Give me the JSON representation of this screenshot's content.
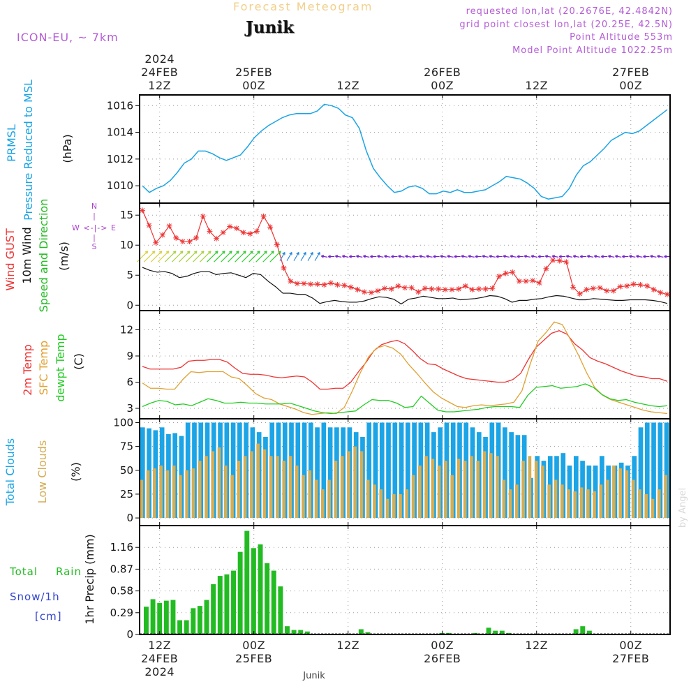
{
  "header": {
    "title": "Forecast Meteogram",
    "location": "Junik",
    "model": "ICON-EU, ~ 7km",
    "requested": "requested lon,lat (20.2676E, 42.4842N)",
    "gridpoint": "grid point closest lon,lat (20.25E, 42.5N)",
    "altitude": "Point Altitude 553m",
    "model_altitude": "Model Point Altitude 1022.25m",
    "credit": "by Angel",
    "footer_location": "Junik"
  },
  "time_axis": {
    "top_labels": [
      {
        "lines": [
          "2024",
          "24FEB",
          "12Z"
        ],
        "t": 12
      },
      {
        "lines": [
          "25FEB",
          "00Z"
        ],
        "t": 24
      },
      {
        "lines": [
          "12Z"
        ],
        "t": 36
      },
      {
        "lines": [
          "26FEB",
          "00Z"
        ],
        "t": 48
      },
      {
        "lines": [
          "12Z"
        ],
        "t": 60
      },
      {
        "lines": [
          "27FEB",
          "00Z"
        ],
        "t": 72
      }
    ],
    "bottom_labels": [
      {
        "lines": [
          "12Z",
          "24FEB",
          "2024"
        ],
        "t": 12
      },
      {
        "lines": [
          "00Z",
          "25FEB"
        ],
        "t": 24
      },
      {
        "lines": [
          "12Z"
        ],
        "t": 36
      },
      {
        "lines": [
          "00Z",
          "26FEB"
        ],
        "t": 48
      },
      {
        "lines": [
          "12Z"
        ],
        "t": 60
      },
      {
        "lines": [
          "00Z",
          "27FEB"
        ],
        "t": 72
      }
    ]
  },
  "chart_data": [
    {
      "type": "line",
      "id": "pressure",
      "title_lines": [
        "PRMSL",
        "Pressure Reduced to MSL"
      ],
      "ylabel": "(hPa)",
      "yticks": [
        1010,
        1012,
        1014,
        1016
      ],
      "ylim": [
        1008.7,
        1016.8
      ],
      "color": "#1ba4e6",
      "x_range": [
        1,
        76
      ],
      "series": [
        {
          "x": [
            1,
            2,
            3,
            4,
            5,
            6,
            7,
            8,
            9,
            10,
            11,
            12,
            13,
            14,
            15,
            16,
            17,
            18,
            19,
            20,
            21,
            22,
            23,
            24,
            25,
            26,
            27,
            28,
            29,
            30,
            31,
            32,
            33,
            34,
            35,
            36,
            37,
            38,
            39,
            40,
            41,
            42,
            43,
            44,
            45,
            46,
            47,
            48,
            49,
            50,
            51,
            52,
            53,
            54,
            55,
            56,
            57,
            58,
            59,
            60,
            61,
            62,
            63,
            64,
            65,
            66,
            67,
            68,
            69,
            70,
            71,
            72,
            73,
            74,
            75,
            76
          ],
          "y": [
            1010.0,
            1009.5,
            1009.8,
            1010.0,
            1010.4,
            1011.0,
            1011.7,
            1012.0,
            1012.6,
            1012.6,
            1012.4,
            1012.1,
            1011.9,
            1012.1,
            1012.3,
            1012.9,
            1013.6,
            1014.1,
            1014.5,
            1014.8,
            1015.1,
            1015.3,
            1015.4,
            1015.4,
            1015.4,
            1015.6,
            1016.1,
            1016.0,
            1015.8,
            1015.3,
            1015.1,
            1014.3,
            1012.6,
            1011.3,
            1010.6,
            1010.0,
            1009.5,
            1009.6,
            1009.9,
            1010.0,
            1009.8,
            1009.4,
            1009.4,
            1009.6,
            1009.5,
            1009.7,
            1009.5,
            1009.5,
            1009.6,
            1009.7,
            1010.0,
            1010.3,
            1010.7,
            1010.6,
            1010.5,
            1010.2,
            1009.8,
            1009.2,
            1009.0,
            1009.1,
            1009.2,
            1009.8,
            1010.8,
            1011.5,
            1011.8,
            1012.3,
            1012.8,
            1013.4,
            1013.7,
            1014.0,
            1013.9,
            1014.1,
            1014.5,
            1014.9,
            1015.3,
            1015.7
          ]
        }
      ]
    },
    {
      "type": "line",
      "id": "wind",
      "title_lines": [
        "Wind GUST",
        "10m Wind",
        "Speed and Direction"
      ],
      "ylabel": "(m/s)",
      "compass": [
        "N",
        "W <-|-> E",
        "S"
      ],
      "yticks": [
        0,
        5,
        10,
        15
      ],
      "ylim": [
        -0.9,
        17
      ],
      "x_range": [
        1,
        76
      ],
      "series": [
        {
          "name": "Wind GUST",
          "color": "#ee3333",
          "y": [
            15.8,
            13.3,
            10.4,
            11.7,
            13.2,
            11.2,
            10.6,
            10.6,
            11.2,
            14.8,
            12.3,
            11.1,
            12.1,
            13.1,
            12.8,
            12.1,
            11.9,
            12.3,
            14.8,
            13.0,
            10.1,
            6.2,
            4.0,
            3.6,
            3.6,
            3.5,
            3.5,
            3.4,
            3.7,
            3.4,
            3.3,
            3.0,
            2.6,
            2.2,
            2.1,
            2.4,
            2.8,
            2.7,
            3.2,
            2.9,
            2.9,
            2.2,
            2.8,
            2.7,
            2.7,
            2.6,
            2.6,
            2.7,
            3.2,
            2.6,
            2.7,
            2.7,
            2.8,
            4.8,
            5.3,
            5.5,
            4.0,
            4.0,
            4.1,
            3.7,
            6.1,
            7.5,
            7.4,
            7.2,
            3.0,
            1.9,
            2.6,
            2.8,
            2.9,
            2.4,
            2.4,
            3.1,
            3.2,
            3.5,
            3.4,
            3.2,
            2.6,
            2.1,
            1.8
          ]
        },
        {
          "name": "10m Wind",
          "color": "#111111",
          "y": [
            6.3,
            5.8,
            5.5,
            5.6,
            5.3,
            4.6,
            4.8,
            5.3,
            5.6,
            5.6,
            5.1,
            5.3,
            5.4,
            5.0,
            4.6,
            5.3,
            5.1,
            4.0,
            3.1,
            2.0,
            2.0,
            1.8,
            1.8,
            1.2,
            0.3,
            0.6,
            0.8,
            0.6,
            0.5,
            0.5,
            0.7,
            1.1,
            1.4,
            1.3,
            1.0,
            0.2,
            1.0,
            1.2,
            1.5,
            1.3,
            1.1,
            1.1,
            1.2,
            0.9,
            1.0,
            1.1,
            1.3,
            1.6,
            1.5,
            1.1,
            0.5,
            0.8,
            0.8,
            1.0,
            1.1,
            1.4,
            1.6,
            1.5,
            1.2,
            0.9,
            0.9,
            1.1,
            1.0,
            0.9,
            0.8,
            0.8,
            0.9,
            0.9,
            0.9,
            0.8,
            0.6,
            0.3
          ]
        }
      ],
      "arrows": {
        "y": 8.1,
        "count": 76
      }
    },
    {
      "type": "line",
      "id": "temperature",
      "title_lines": [
        "2m Temp",
        "SFC Temp",
        "dewpt Temp"
      ],
      "ylabel": "(C)",
      "yticks": [
        3,
        6,
        9,
        12
      ],
      "ylim": [
        1.8,
        14.2
      ],
      "x_range": [
        1,
        76
      ],
      "series": [
        {
          "name": "2m Temp",
          "color": "#ee3333",
          "y": [
            7.8,
            7.5,
            7.5,
            7.5,
            7.5,
            7.7,
            8.4,
            8.5,
            8.5,
            8.6,
            8.6,
            8.3,
            7.6,
            7.0,
            6.9,
            6.9,
            6.8,
            6.6,
            6.5,
            6.6,
            6.7,
            6.6,
            6.0,
            5.2,
            5.2,
            5.3,
            5.3,
            6.0,
            7.2,
            8.3,
            9.6,
            10.3,
            10.6,
            10.8,
            10.4,
            9.6,
            8.7,
            8.1,
            8.0,
            7.5,
            7.1,
            6.7,
            6.4,
            6.3,
            6.2,
            6.1,
            6.0,
            6.0,
            6.3,
            7.0,
            8.6,
            10.0,
            10.8,
            11.6,
            11.9,
            11.5,
            10.4,
            9.7,
            8.8,
            8.4,
            8.1,
            7.7,
            7.3,
            7.0,
            6.7,
            6.6,
            6.4,
            6.4,
            6.1
          ]
        },
        {
          "name": "SFC Temp",
          "color": "#e0a030",
          "y": [
            5.9,
            5.3,
            5.3,
            5.2,
            5.2,
            6.3,
            7.2,
            7.1,
            7.2,
            7.2,
            7.2,
            6.6,
            6.4,
            5.6,
            4.7,
            4.2,
            4.0,
            3.5,
            3.2,
            2.9,
            2.5,
            2.3,
            2.4,
            2.5,
            2.4,
            3.1,
            5.0,
            7.1,
            8.9,
            9.9,
            10.2,
            9.9,
            9.2,
            8.0,
            7.0,
            5.9,
            4.9,
            4.2,
            3.7,
            3.2,
            3.1,
            3.3,
            3.4,
            3.3,
            3.4,
            3.5,
            3.7,
            5.0,
            8.0,
            10.7,
            11.7,
            12.9,
            12.6,
            10.9,
            9.1,
            7.1,
            5.4,
            4.5,
            4.0,
            3.7,
            3.4,
            3.1,
            2.8,
            2.6,
            2.5,
            2.4
          ]
        },
        {
          "name": "dewpt Temp",
          "color": "#22cc22",
          "y": [
            3.2,
            3.6,
            3.9,
            3.8,
            3.4,
            3.5,
            3.3,
            3.7,
            4.1,
            3.9,
            3.6,
            3.6,
            3.7,
            3.6,
            3.6,
            3.5,
            3.5,
            3.5,
            3.6,
            3.3,
            3.0,
            2.7,
            2.5,
            2.4,
            2.5,
            2.6,
            2.7,
            3.4,
            4.0,
            3.9,
            3.9,
            3.6,
            3.1,
            3.2,
            4.4,
            3.6,
            2.8,
            2.6,
            2.6,
            2.7,
            2.8,
            2.9,
            3.1,
            3.2,
            3.2,
            3.2,
            3.1,
            4.5,
            5.4,
            5.5,
            5.6,
            5.3,
            5.4,
            5.5,
            5.8,
            5.4,
            4.6,
            4.1,
            3.9,
            4.0,
            3.7,
            3.5,
            3.3,
            3.2,
            3.3
          ]
        }
      ]
    },
    {
      "type": "bar",
      "id": "clouds",
      "title_lines": [
        "Total Clouds",
        "Low Clouds"
      ],
      "ylabel": "(%)",
      "yticks": [
        0,
        25,
        50,
        75,
        100
      ],
      "ylim": [
        -8,
        104
      ],
      "x_range": [
        1,
        76
      ],
      "series": [
        {
          "name": "Total Clouds",
          "color": "#1ba4e6",
          "values": [
            95,
            94,
            92,
            95,
            88,
            89,
            86,
            100,
            100,
            100,
            100,
            100,
            100,
            100,
            100,
            100,
            100,
            95,
            90,
            85,
            100,
            100,
            100,
            100,
            100,
            100,
            100,
            95,
            100,
            95,
            95,
            95,
            95,
            90,
            85,
            100,
            100,
            100,
            100,
            100,
            100,
            100,
            100,
            100,
            100,
            90,
            95,
            100,
            100,
            100,
            100,
            95,
            90,
            85,
            100,
            100,
            95,
            90,
            87,
            87,
            42,
            65,
            60,
            65,
            65,
            68,
            55,
            65,
            60,
            55,
            55,
            65,
            55,
            55,
            58,
            55,
            65,
            95,
            100,
            100,
            100,
            100
          ]
        },
        {
          "name": "Low Clouds",
          "color": "#d4ad55",
          "values": [
            40,
            50,
            52,
            55,
            50,
            55,
            45,
            50,
            52,
            60,
            65,
            70,
            74,
            55,
            45,
            60,
            65,
            70,
            78,
            72,
            65,
            65,
            60,
            65,
            55,
            45,
            50,
            40,
            30,
            40,
            60,
            65,
            70,
            75,
            70,
            40,
            35,
            30,
            20,
            25,
            25,
            30,
            45,
            55,
            65,
            62,
            55,
            60,
            45,
            62,
            60,
            65,
            60,
            70,
            68,
            65,
            40,
            30,
            35,
            60,
            65,
            60,
            55,
            35,
            40,
            35,
            30,
            28,
            32,
            30,
            28,
            35,
            40,
            55,
            52,
            50,
            40,
            30,
            25,
            20,
            30,
            45
          ]
        }
      ]
    },
    {
      "type": "bar",
      "id": "precip",
      "title_lines": [
        "Total Rain",
        "Snow/1h",
        "[cm]"
      ],
      "ylabel": "1hr Precip (mm)",
      "yticks": [
        0,
        0.29,
        0.58,
        0.87,
        1.16
      ],
      "ytick_labels": [
        "0",
        "0.29",
        "0.58",
        "0.87",
        "1.16"
      ],
      "ylim": [
        0,
        1.45
      ],
      "x_range": [
        1,
        76
      ],
      "series": [
        {
          "name": "Total Rain",
          "color": "#22bb22",
          "values": [
            0.37,
            0.47,
            0.42,
            0.45,
            0.46,
            0.19,
            0.19,
            0.35,
            0.38,
            0.46,
            0.67,
            0.78,
            0.8,
            0.85,
            1.1,
            1.38,
            1.15,
            1.2,
            0.95,
            0.85,
            0.64,
            0.11,
            0.06,
            0.06,
            0.04,
            0,
            0,
            0,
            0,
            0,
            0,
            0,
            0.07,
            0.03,
            0,
            0,
            0,
            0,
            0,
            0,
            0,
            0,
            0,
            0,
            0.02,
            0.02,
            0,
            0,
            0,
            0.02,
            0,
            0.09,
            0.05,
            0.05,
            0.02,
            0,
            0,
            0,
            0,
            0,
            0,
            0,
            0,
            0,
            0.07,
            0.11,
            0.05,
            0,
            0,
            0,
            0,
            0,
            0,
            0,
            0,
            0,
            0,
            0,
            0
          ]
        }
      ]
    }
  ]
}
